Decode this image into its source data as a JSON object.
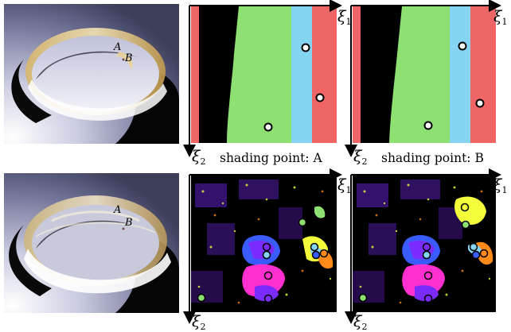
{
  "figure": {
    "render_labels": {
      "point_a": "A",
      "point_b": "B"
    },
    "axes": {
      "xi1": {
        "symbol": "ξ",
        "subscript": "1"
      },
      "xi2": {
        "symbol": "ξ",
        "subscript": "2"
      }
    },
    "captions": {
      "caption_a": "shading point: A",
      "caption_b": "shading point: B"
    },
    "colors": {
      "red": "#ef6464",
      "green": "#8ee072",
      "cyan": "#84d4f2",
      "black": "#000000",
      "violet": "#7a2cff",
      "magenta": "#ff2fd0",
      "blue": "#3a5cff",
      "yellow": "#f2ff3a",
      "orange": "#ff8a1a"
    }
  }
}
